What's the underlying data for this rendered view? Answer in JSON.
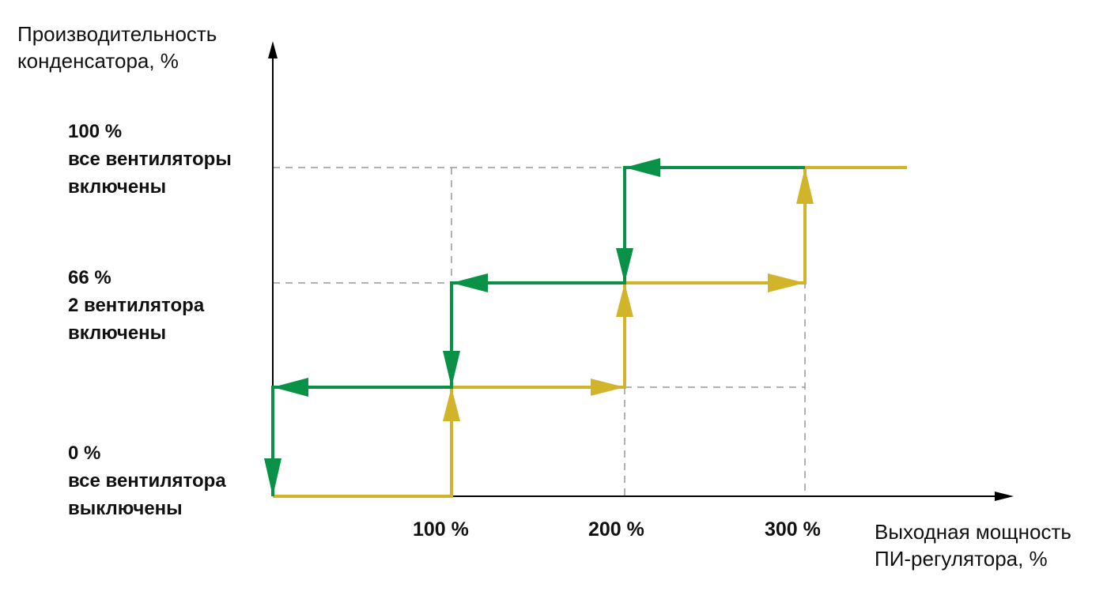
{
  "axes": {
    "y_title": "Производительность\nконденсатора, %",
    "x_title": "Выходная мощность\nПИ-регулятора, %"
  },
  "y_levels": [
    {
      "label": "100 %\nвсе вентиляторы\nвключены"
    },
    {
      "label": "66 %\n2 вентилятора\nвключены"
    },
    {
      "label": "0 %\nвсе вентилятора\nвыключены"
    }
  ],
  "x_ticks": [
    "100 %",
    "200 %",
    "300 %"
  ],
  "colors": {
    "increase": "#d2b42b",
    "decrease": "#0a9148",
    "axis": "#000000",
    "guide": "#999999"
  }
}
